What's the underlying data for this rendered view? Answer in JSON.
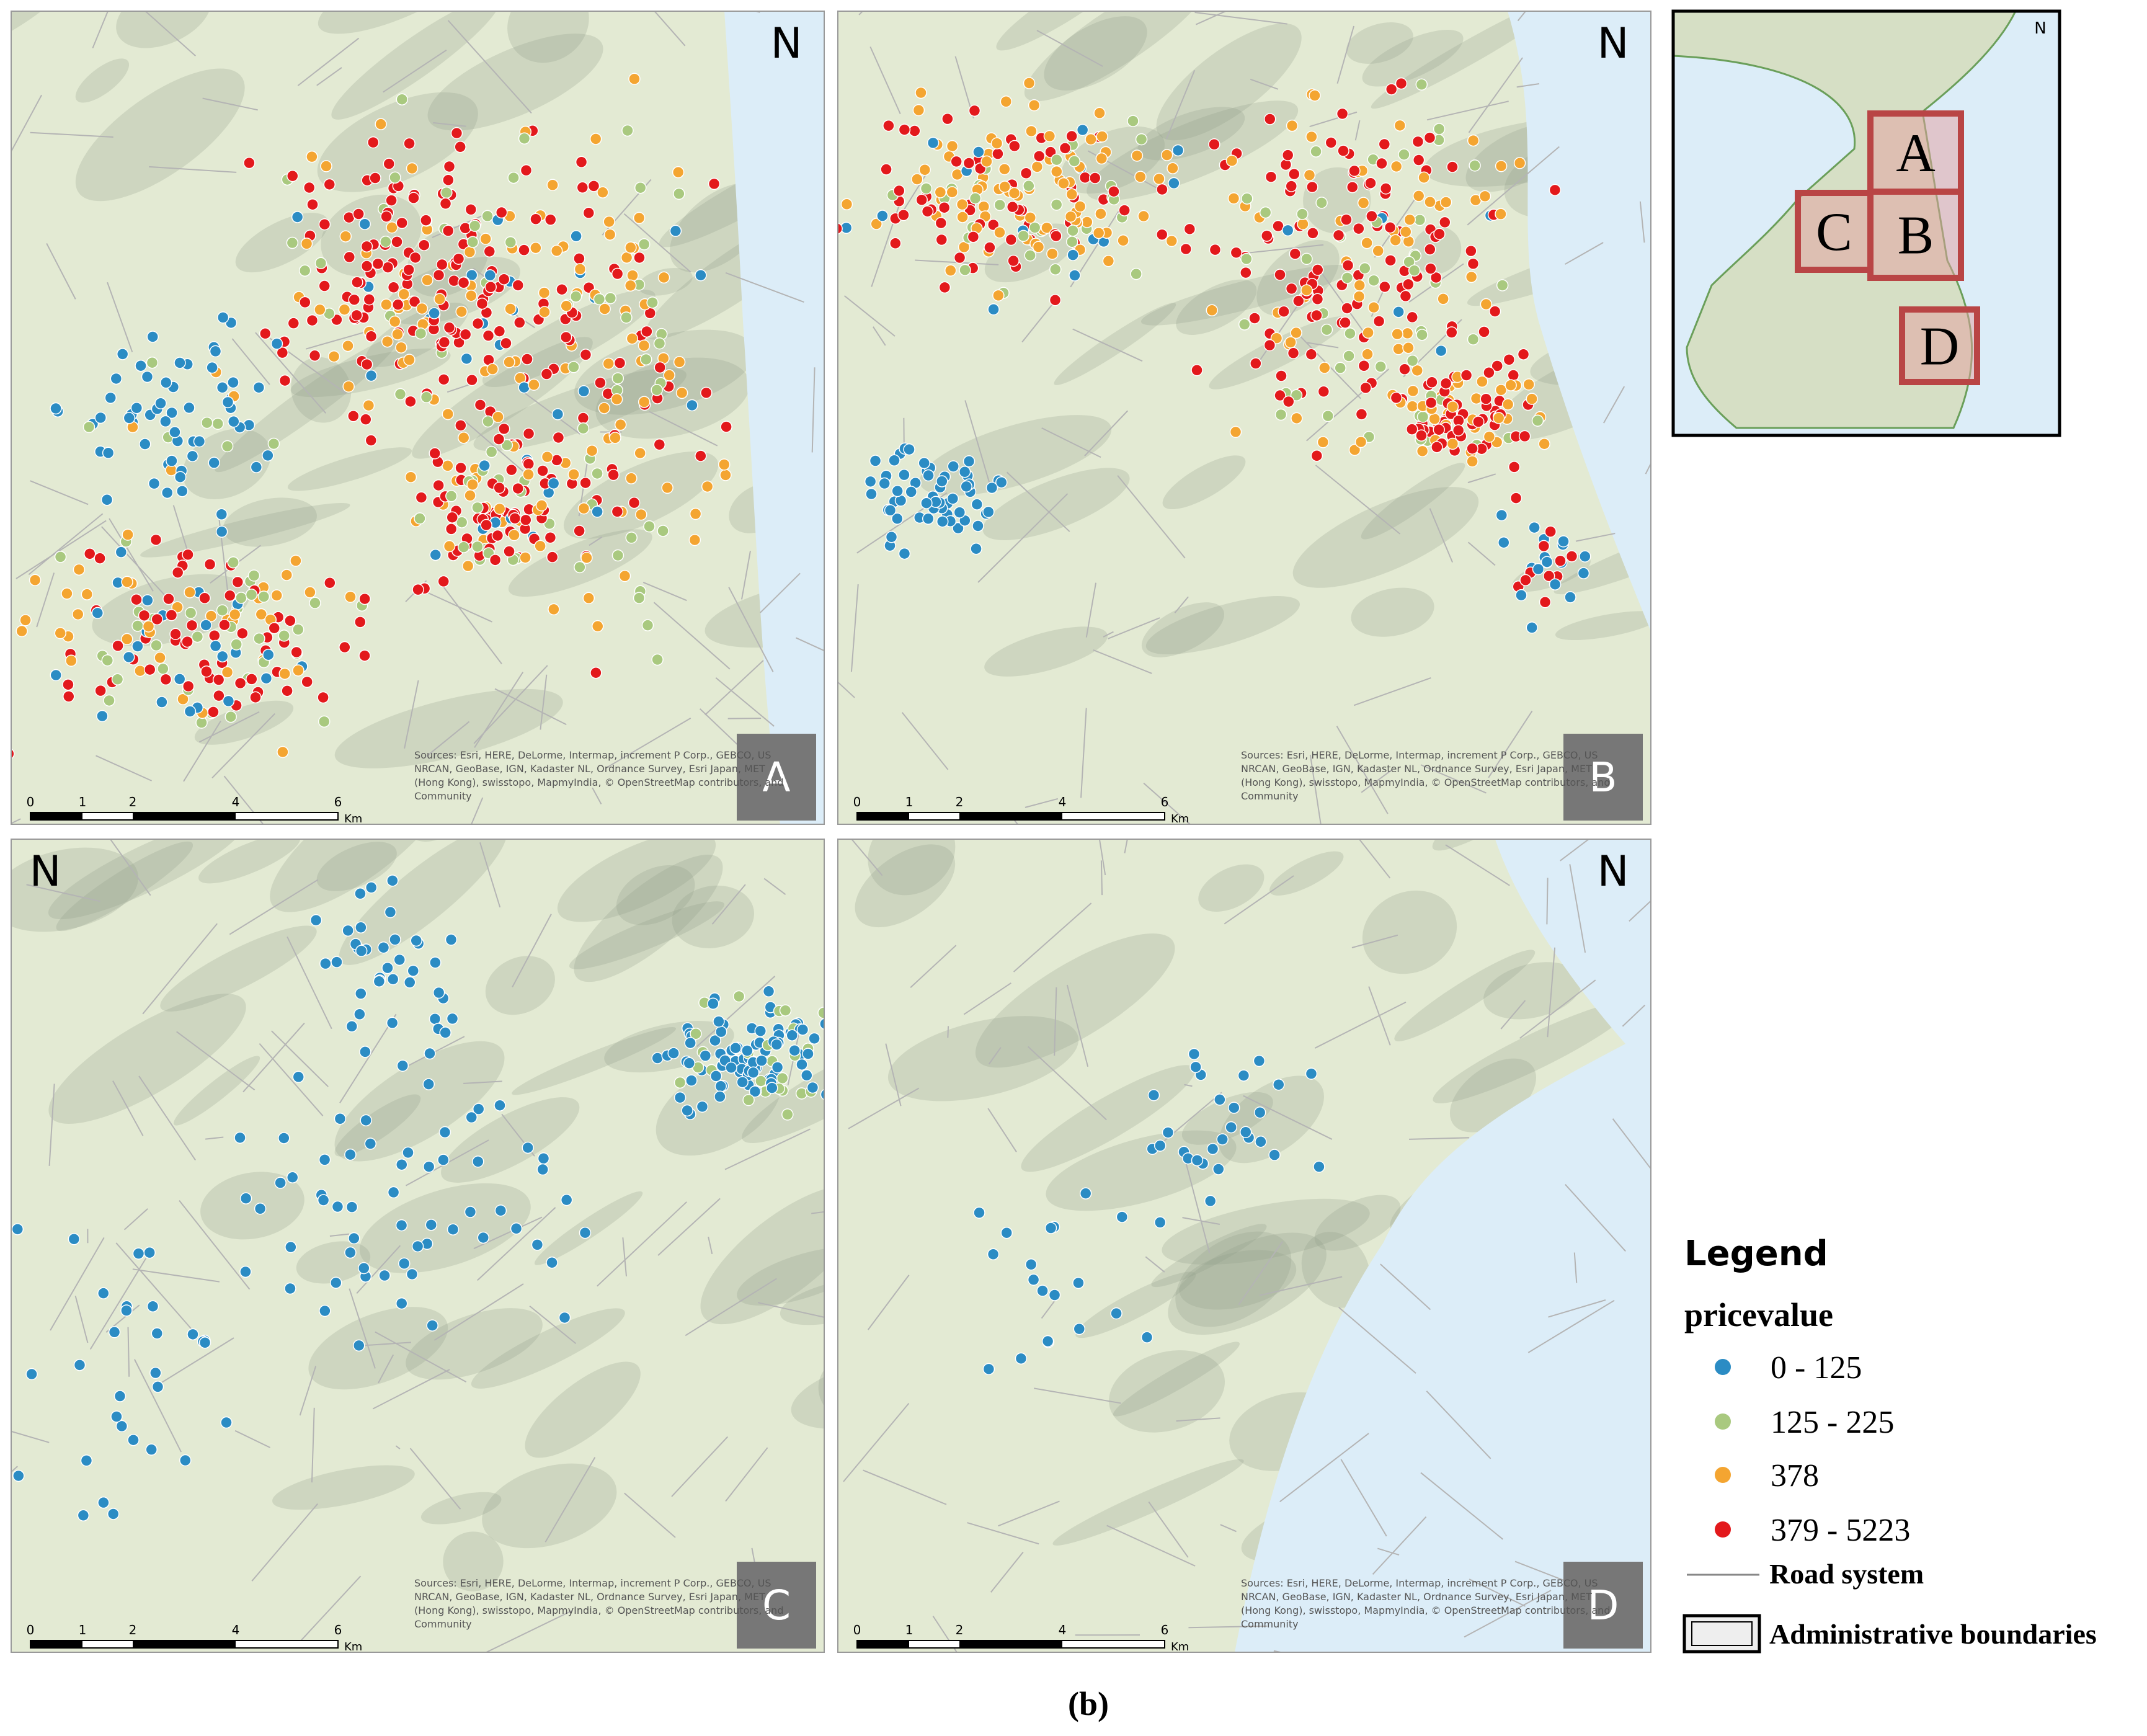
{
  "panels": [
    {
      "letter": "A",
      "north": "N",
      "scale": [
        "0",
        "1",
        "2",
        "4",
        "6",
        "Km"
      ],
      "sources": [
        "Sources: Esri, HERE, DeLorme, Intermap, increment P Corp., GEBCO, US",
        "NRCAN, GeoBase, IGN, Kadaster NL, Ordnance Survey, Esri Japan, MET",
        "(Hong Kong), swisstopo, MapmyIndia, © OpenStreetMap contributors, and",
        "Community"
      ]
    },
    {
      "letter": "B",
      "north": "N",
      "scale": [
        "0",
        "1",
        "2",
        "4",
        "6",
        "Km"
      ],
      "sources": [
        "Sources: Esri, HERE, DeLorme, Intermap, increment P Corp., GEBCO, US",
        "NRCAN, GeoBase, IGN, Kadaster NL, Ordnance Survey, Esri Japan, MET",
        "(Hong Kong), swisstopo, MapmyIndia, © OpenStreetMap contributors, and",
        "Community"
      ]
    },
    {
      "letter": "C",
      "north": "N",
      "scale": [
        "0",
        "1",
        "2",
        "4",
        "6",
        "Km"
      ],
      "sources": [
        "Sources: Esri, HERE, DeLorme, Intermap, increment P Corp., GEBCO, US",
        "NRCAN, GeoBase, IGN, Kadaster NL, Ordnance Survey, Esri Japan, MET",
        "(Hong Kong), swisstopo, MapmyIndia, © OpenStreetMap contributors, and",
        "Community"
      ]
    },
    {
      "letter": "D",
      "north": "N",
      "scale": [
        "0",
        "1",
        "2",
        "4",
        "6",
        "Km"
      ],
      "sources": [
        "Sources: Esri, HERE, DeLorme, Intermap, increment P Corp., GEBCO, US",
        "NRCAN, GeoBase, IGN, Kadaster NL, Ordnance Survey, Esri Japan, MET",
        "(Hong Kong), swisstopo, MapmyIndia, © OpenStreetMap contributors, and",
        "Community"
      ]
    }
  ],
  "inset": {
    "north": "N",
    "boxes": [
      "A",
      "B",
      "C",
      "D"
    ]
  },
  "legend": {
    "title": "Legend",
    "field": "pricevalue",
    "classes": [
      {
        "label": "0 - 125",
        "color": "#2b8cc4"
      },
      {
        "label": "125 - 225",
        "color": "#a9c97f"
      },
      {
        "label": "378",
        "color": "#f4a531"
      },
      {
        "label": "379 - 5223",
        "color": "#e3191c"
      }
    ],
    "road": "Road system",
    "admin": "Administrative boundaries"
  },
  "caption": "(b)"
}
